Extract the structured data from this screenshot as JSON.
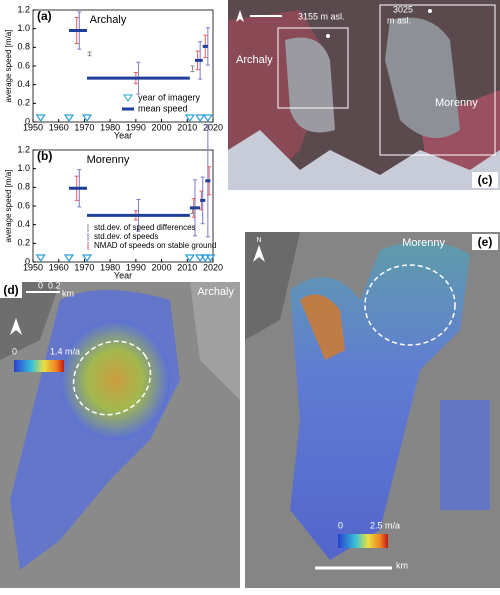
{
  "chart_data": [
    {
      "type": "errorbar",
      "label": "(a)",
      "title": "Archaly",
      "xlabel": "Year",
      "ylabel": "average speed [m/a]",
      "xlim": [
        1950,
        2020
      ],
      "xticks": [
        1950,
        1960,
        1970,
        1980,
        1990,
        2000,
        2010,
        2020
      ],
      "ylim": [
        0,
        1.2
      ],
      "yticks": [
        0,
        0.2,
        0.4,
        0.6,
        0.8,
        {
          "value": 1,
          "label": "1.0"
        },
        1.2
      ],
      "imagery": {
        "name": "year of imagery",
        "color": "#2aa0d8",
        "x": [
          1953,
          1964,
          1971,
          2011,
          2015,
          2018
        ]
      },
      "mean": {
        "name": "mean speed",
        "color": "#1f3f9a",
        "x_start": [
          1964,
          1971,
          2013,
          2016
        ],
        "x_end": [
          1971,
          2011,
          2016,
          2018
        ],
        "values": [
          0.98,
          0.47,
          0.66,
          0.81
        ]
      },
      "errors": [
        {
          "color": "#8a8a8a",
          "x": [
            1972,
            2012
          ],
          "values": [
            0.73,
            0.57
          ],
          "errors": [
            0.02,
            0.03
          ]
        },
        {
          "color": "#7a7acc",
          "x": [
            1968,
            1991,
            2015,
            2018
          ],
          "values": [
            0.98,
            0.47,
            0.66,
            0.81
          ],
          "errors": [
            0.2,
            0.17,
            0.2,
            0.2
          ]
        },
        {
          "color": "#e06060",
          "x": [
            1967,
            1990,
            2014,
            2017
          ],
          "values": [
            0.98,
            0.47,
            0.66,
            0.81
          ],
          "errors": [
            0.14,
            0.06,
            0.1,
            0.12
          ]
        }
      ]
    },
    {
      "type": "errorbar",
      "label": "(b)",
      "title": "Morenny",
      "xlabel": "Year",
      "ylabel": "average speed [m/a]",
      "xlim": [
        1950,
        2020
      ],
      "xticks": [
        1950,
        1960,
        1970,
        1980,
        1990,
        2000,
        2010,
        2020
      ],
      "ylim": [
        0,
        1.2
      ],
      "yticks": [
        0,
        0.2,
        0.4,
        0.6,
        0.8,
        {
          "value": 1,
          "label": "1.0"
        },
        1.2
      ],
      "imagery": {
        "color": "#2aa0d8",
        "x": [
          1953,
          1964,
          1971,
          2011,
          2015,
          2017,
          2019
        ]
      },
      "mean": {
        "color": "#1f3f9a",
        "x_start": [
          1964,
          1971,
          2011,
          2015,
          2017
        ],
        "x_end": [
          1971,
          2011,
          2015,
          2017,
          2019
        ],
        "values": [
          0.79,
          0.5,
          0.58,
          0.66,
          0.87
        ]
      },
      "errors": [
        {
          "name": "std.dev. of speed differences",
          "color": "#8a8a8a",
          "x": [
            2012
          ],
          "values": [
            0.55
          ],
          "errors": [
            0.03
          ]
        },
        {
          "name": "std.dev. of speeds",
          "color": "#7a7acc",
          "x": [
            1968,
            1991,
            2013,
            2016,
            2018
          ],
          "values": [
            0.79,
            0.5,
            0.58,
            0.66,
            0.87
          ],
          "errors": [
            0.2,
            0.17,
            0.3,
            0.25,
            0.6
          ]
        },
        {
          "name": "NMAD of speeds on stable ground",
          "color": "#e06060",
          "x": [
            1967,
            1990,
            2012.5,
            2015.5,
            2018.5
          ],
          "values": [
            0.79,
            0.5,
            0.58,
            0.66,
            0.87
          ],
          "errors": [
            0.13,
            0.05,
            0.1,
            0.1,
            0.15
          ]
        }
      ]
    }
  ],
  "panels": {
    "c": {
      "label": "(c)",
      "elev1": "3155 m asl.",
      "elev2_line1": "3025",
      "elev2_line2": "m asl.",
      "glacier1": "Archaly",
      "glacier2": "Morenny"
    },
    "d": {
      "label": "(d)",
      "title": "Archaly",
      "scale_start": "0",
      "scale": "0.2",
      "scale_unit": "km",
      "cbar_min": "0",
      "cbar_max": "1.4 m/a"
    },
    "e": {
      "label": "(e)",
      "title": "Morenny",
      "north": "N",
      "cbar_min": "0",
      "cbar_max": "2.5 m/a",
      "scale_unit": "km"
    }
  }
}
